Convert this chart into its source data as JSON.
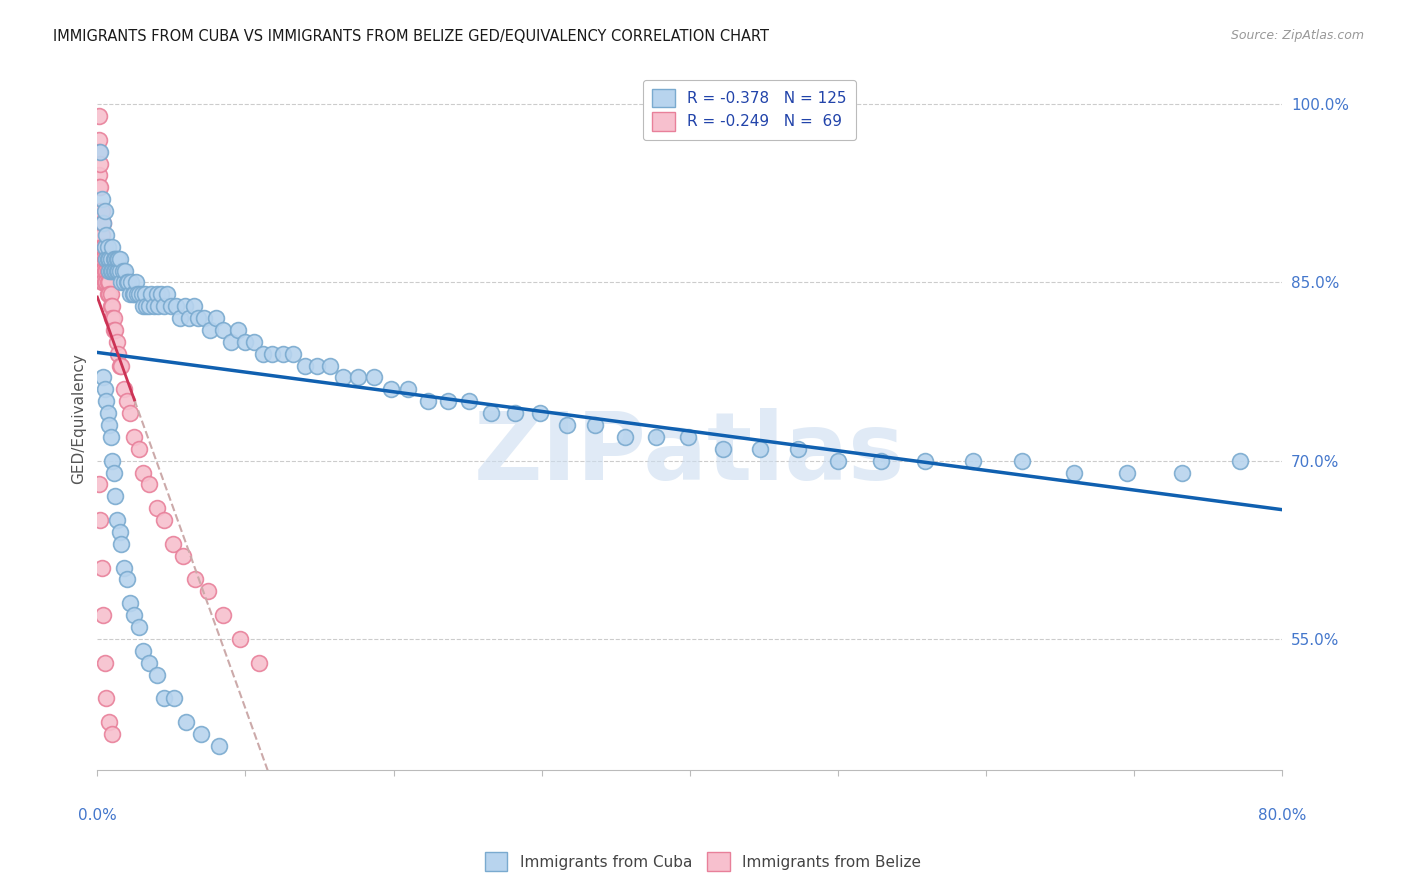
{
  "title": "IMMIGRANTS FROM CUBA VS IMMIGRANTS FROM BELIZE GED/EQUIVALENCY CORRELATION CHART",
  "source": "Source: ZipAtlas.com",
  "ylabel": "GED/Equivalency",
  "right_ytick_vals": [
    0.55,
    0.7,
    0.85,
    1.0
  ],
  "right_ytick_labels": [
    "55.0%",
    "70.0%",
    "85.0%",
    "100.0%"
  ],
  "legend_top": [
    {
      "label": "R = -0.378   N = 125",
      "facecolor": "#b8d4ee",
      "edgecolor": "#7aaacf"
    },
    {
      "label": "R = -0.249   N =  69",
      "facecolor": "#f7c0ce",
      "edgecolor": "#e8809a"
    }
  ],
  "legend_bottom": [
    "Immigrants from Cuba",
    "Immigrants from Belize"
  ],
  "cuba_facecolor": "#b8d4ee",
  "cuba_edgecolor": "#7aaacf",
  "belize_facecolor": "#f7c0ce",
  "belize_edgecolor": "#e8809a",
  "trend_cuba_color": "#1060b0",
  "trend_belize_color": "#cc3355",
  "trend_belize_dash_color": "#ccaaaa",
  "background_color": "#ffffff",
  "watermark_text": "ZIPatlas",
  "watermark_color": "#ccddf0",
  "xmin": 0.0,
  "xmax": 0.8,
  "ymin": 0.44,
  "ymax": 1.03,
  "cuba_x": [
    0.002,
    0.003,
    0.004,
    0.005,
    0.005,
    0.006,
    0.006,
    0.007,
    0.007,
    0.008,
    0.008,
    0.009,
    0.009,
    0.01,
    0.01,
    0.011,
    0.011,
    0.012,
    0.012,
    0.013,
    0.013,
    0.014,
    0.014,
    0.015,
    0.015,
    0.016,
    0.017,
    0.018,
    0.019,
    0.02,
    0.021,
    0.022,
    0.023,
    0.024,
    0.025,
    0.026,
    0.027,
    0.028,
    0.03,
    0.031,
    0.032,
    0.033,
    0.035,
    0.036,
    0.038,
    0.04,
    0.041,
    0.043,
    0.045,
    0.047,
    0.05,
    0.053,
    0.056,
    0.059,
    0.062,
    0.065,
    0.068,
    0.072,
    0.076,
    0.08,
    0.085,
    0.09,
    0.095,
    0.1,
    0.106,
    0.112,
    0.118,
    0.125,
    0.132,
    0.14,
    0.148,
    0.157,
    0.166,
    0.176,
    0.187,
    0.198,
    0.21,
    0.223,
    0.237,
    0.251,
    0.266,
    0.282,
    0.299,
    0.317,
    0.336,
    0.356,
    0.377,
    0.399,
    0.422,
    0.447,
    0.473,
    0.5,
    0.529,
    0.559,
    0.591,
    0.624,
    0.659,
    0.695,
    0.732,
    0.771,
    0.004,
    0.005,
    0.006,
    0.007,
    0.008,
    0.009,
    0.01,
    0.011,
    0.012,
    0.013,
    0.015,
    0.016,
    0.018,
    0.02,
    0.022,
    0.025,
    0.028,
    0.031,
    0.035,
    0.04,
    0.045,
    0.052,
    0.06,
    0.07,
    0.082
  ],
  "cuba_y": [
    0.96,
    0.92,
    0.9,
    0.91,
    0.88,
    0.89,
    0.87,
    0.88,
    0.87,
    0.87,
    0.86,
    0.87,
    0.86,
    0.88,
    0.86,
    0.87,
    0.86,
    0.87,
    0.86,
    0.86,
    0.87,
    0.86,
    0.87,
    0.86,
    0.87,
    0.85,
    0.86,
    0.85,
    0.86,
    0.85,
    0.85,
    0.84,
    0.85,
    0.84,
    0.84,
    0.85,
    0.84,
    0.84,
    0.84,
    0.83,
    0.84,
    0.83,
    0.83,
    0.84,
    0.83,
    0.84,
    0.83,
    0.84,
    0.83,
    0.84,
    0.83,
    0.83,
    0.82,
    0.83,
    0.82,
    0.83,
    0.82,
    0.82,
    0.81,
    0.82,
    0.81,
    0.8,
    0.81,
    0.8,
    0.8,
    0.79,
    0.79,
    0.79,
    0.79,
    0.78,
    0.78,
    0.78,
    0.77,
    0.77,
    0.77,
    0.76,
    0.76,
    0.75,
    0.75,
    0.75,
    0.74,
    0.74,
    0.74,
    0.73,
    0.73,
    0.72,
    0.72,
    0.72,
    0.71,
    0.71,
    0.71,
    0.7,
    0.7,
    0.7,
    0.7,
    0.7,
    0.69,
    0.69,
    0.69,
    0.7,
    0.77,
    0.76,
    0.75,
    0.74,
    0.73,
    0.72,
    0.7,
    0.69,
    0.67,
    0.65,
    0.64,
    0.63,
    0.61,
    0.6,
    0.58,
    0.57,
    0.56,
    0.54,
    0.53,
    0.52,
    0.5,
    0.5,
    0.48,
    0.47,
    0.46
  ],
  "belize_x": [
    0.001,
    0.001,
    0.001,
    0.001,
    0.001,
    0.002,
    0.002,
    0.002,
    0.002,
    0.002,
    0.002,
    0.003,
    0.003,
    0.003,
    0.003,
    0.003,
    0.003,
    0.004,
    0.004,
    0.004,
    0.004,
    0.004,
    0.005,
    0.005,
    0.005,
    0.005,
    0.006,
    0.006,
    0.006,
    0.007,
    0.007,
    0.007,
    0.008,
    0.008,
    0.009,
    0.009,
    0.01,
    0.01,
    0.011,
    0.011,
    0.012,
    0.013,
    0.014,
    0.015,
    0.016,
    0.018,
    0.02,
    0.022,
    0.025,
    0.028,
    0.031,
    0.035,
    0.04,
    0.045,
    0.051,
    0.058,
    0.066,
    0.075,
    0.085,
    0.096,
    0.109,
    0.001,
    0.002,
    0.003,
    0.004,
    0.005,
    0.006,
    0.008,
    0.01
  ],
  "belize_y": [
    0.99,
    0.97,
    0.96,
    0.94,
    0.93,
    0.95,
    0.93,
    0.91,
    0.9,
    0.88,
    0.87,
    0.91,
    0.89,
    0.88,
    0.87,
    0.86,
    0.85,
    0.9,
    0.88,
    0.87,
    0.86,
    0.85,
    0.88,
    0.87,
    0.86,
    0.85,
    0.87,
    0.86,
    0.85,
    0.86,
    0.85,
    0.84,
    0.85,
    0.84,
    0.84,
    0.83,
    0.83,
    0.82,
    0.82,
    0.81,
    0.81,
    0.8,
    0.79,
    0.78,
    0.78,
    0.76,
    0.75,
    0.74,
    0.72,
    0.71,
    0.69,
    0.68,
    0.66,
    0.65,
    0.63,
    0.62,
    0.6,
    0.59,
    0.57,
    0.55,
    0.53,
    0.68,
    0.65,
    0.61,
    0.57,
    0.53,
    0.5,
    0.48,
    0.47
  ]
}
